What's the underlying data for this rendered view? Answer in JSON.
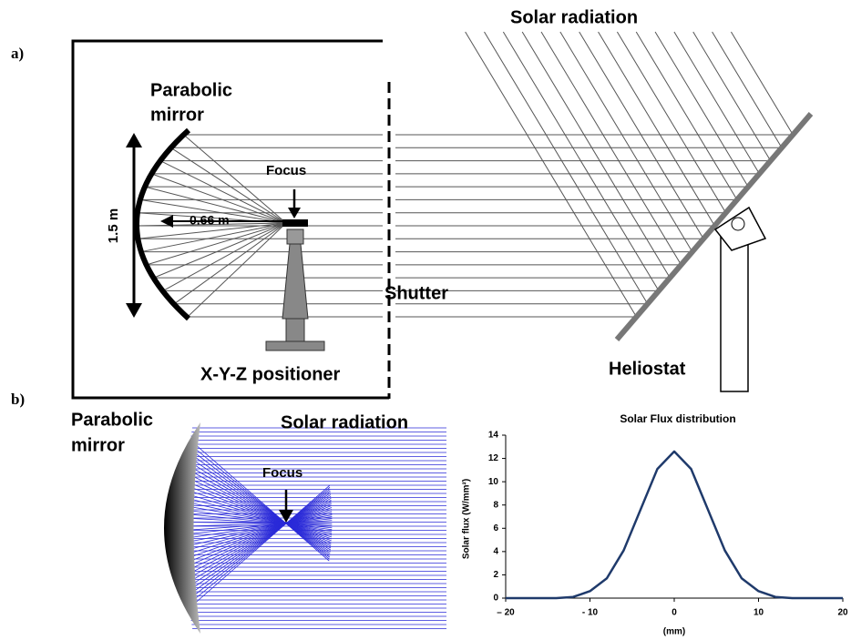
{
  "panel_a": {
    "label": "a)",
    "solar_radiation": "Solar radiation",
    "mirror_line1": "Parabolic",
    "mirror_line2": "mirror",
    "focus": "Focus",
    "height": "1.5 m",
    "distance": "0.66 m",
    "shutter": "Shutter",
    "positioner": "X-Y-Z positioner",
    "heliostat": "Heliostat"
  },
  "panel_b": {
    "label": "b)",
    "mirror_line1": "Parabolic",
    "mirror_line2": "mirror",
    "solar_radiation": "Solar radiation",
    "focus": "Focus"
  },
  "chart_data": {
    "type": "line",
    "title": "Solar Flux distribution",
    "x_label": "(mm)",
    "y_label": "Solar flux (W/mm²)",
    "x": [
      -20,
      -18,
      -16,
      -14,
      -12,
      -10,
      -8,
      -6,
      -4,
      -2,
      0,
      2,
      4,
      6,
      8,
      10,
      12,
      14,
      16,
      18,
      20
    ],
    "series": [
      {
        "color": "#1f3a6b",
        "values": [
          0,
          0,
          0,
          0,
          0.1,
          0.6,
          1.7,
          4.1,
          7.6,
          11.1,
          12.6,
          11.1,
          7.6,
          4.1,
          1.7,
          0.6,
          0.1,
          0,
          0,
          0,
          0
        ]
      }
    ],
    "xlim": [
      -20,
      20
    ],
    "ylim": [
      0,
      14
    ],
    "xticks": [
      {
        "value": -20,
        "label": "– 20"
      },
      {
        "value": -10,
        "label": "- 10"
      },
      0,
      10,
      20
    ],
    "yticks": [
      0,
      2,
      4,
      6,
      8,
      10,
      12,
      14
    ]
  }
}
